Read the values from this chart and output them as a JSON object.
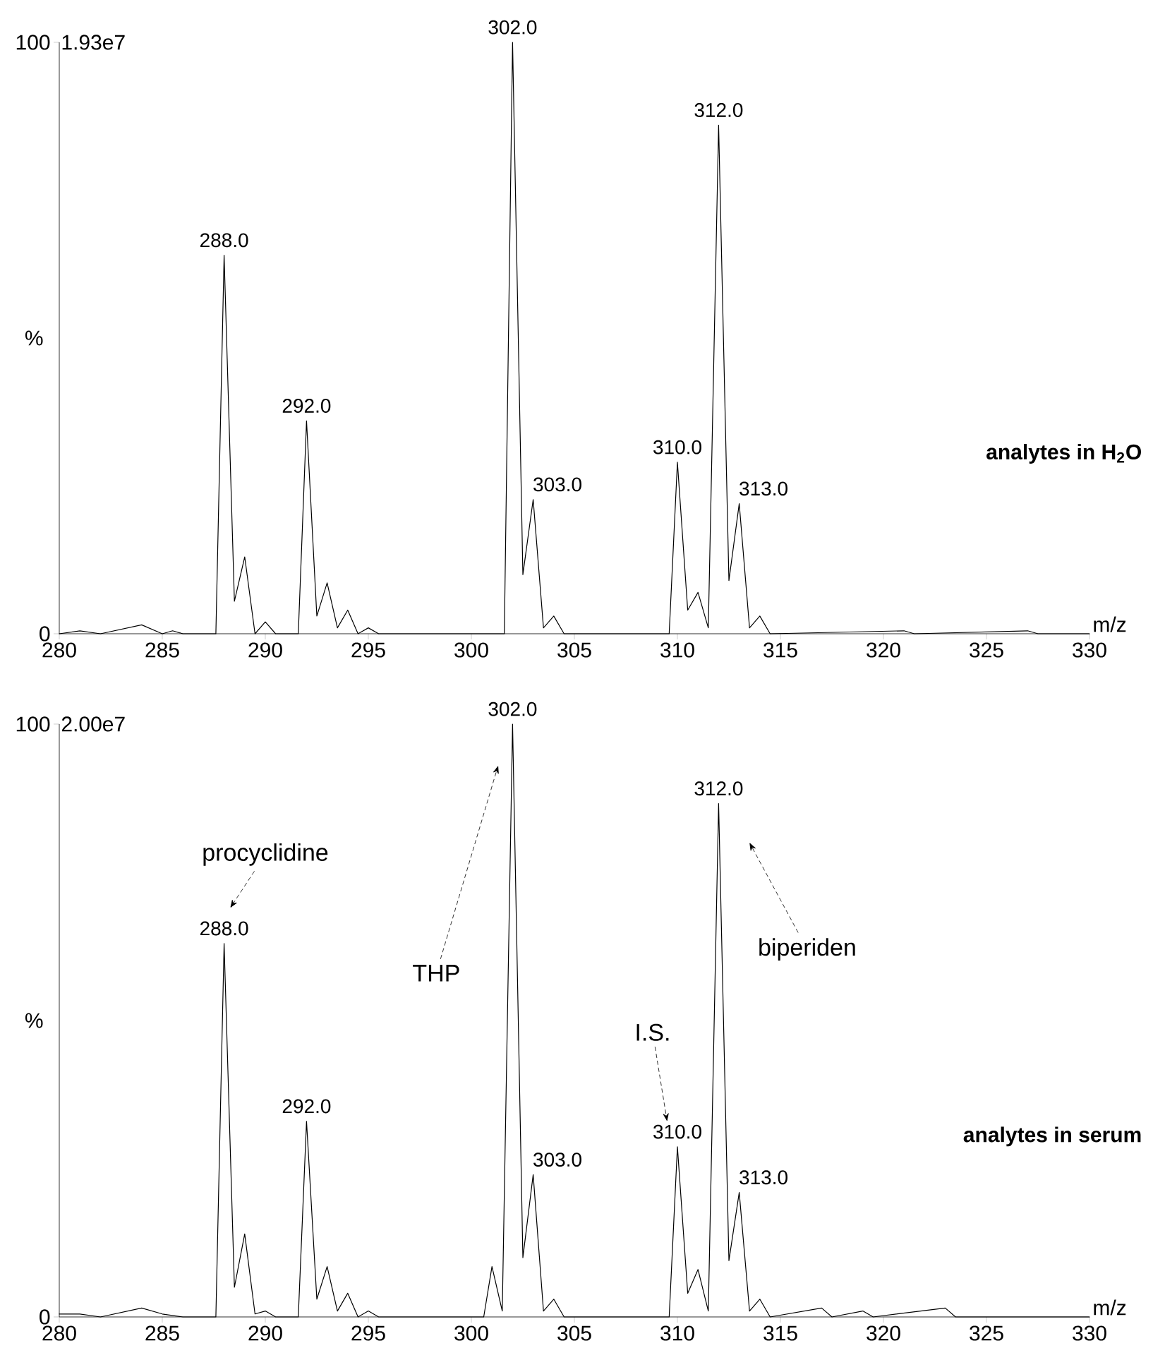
{
  "chart_data": [
    {
      "type": "line",
      "title": "analytes in H$_{2}$O",
      "xlabel": "m/z",
      "ylabel": "%",
      "marker": "none",
      "line_style": "solid",
      "annotations": [
        "1.93e7",
        {
          "text": "288.0",
          "x": 288,
          "y": 64
        },
        {
          "text": "292.0",
          "x": 292,
          "y": 36
        },
        {
          "text": "302.0",
          "x": 302,
          "y": 100
        },
        {
          "text": "303.0",
          "x": 303,
          "y": 22.7
        },
        {
          "text": "310.0",
          "x": 310,
          "y": 29
        },
        {
          "text": "312.0",
          "x": 312,
          "y": 86
        },
        {
          "text": "313.0",
          "x": 313,
          "y": 22
        }
      ],
      "xlim": [
        280,
        330
      ],
      "ylim": [
        0,
        100
      ],
      "xticks": [
        280,
        285,
        290,
        295,
        300,
        305,
        310,
        315,
        320,
        325,
        330
      ],
      "yticks": [
        0,
        100
      ],
      "series": [
        {
          "color": "#000000",
          "x": [
            280,
            281,
            282,
            284,
            285,
            285.5,
            286,
            287.6,
            288,
            288.5,
            289,
            289.5,
            290,
            290.5,
            291.6,
            292,
            292.5,
            293,
            293.5,
            294,
            294.5,
            295,
            295.5,
            301.6,
            302,
            302.5,
            303,
            303.5,
            304,
            304.5,
            309.6,
            310,
            310.5,
            311,
            311.5,
            312,
            312.5,
            313,
            313.5,
            314,
            314.5,
            321,
            321.5,
            327,
            327.5,
            330
          ],
          "values": [
            0,
            0.5,
            0,
            1.5,
            0,
            0.5,
            0,
            0,
            64,
            5.5,
            13,
            0,
            2,
            0,
            0,
            36,
            3,
            8.6,
            1,
            4,
            0,
            1,
            0,
            0,
            100,
            10,
            22.7,
            1,
            3,
            0,
            0,
            29,
            4,
            7,
            1,
            86,
            9,
            22,
            1,
            3,
            0,
            0.5,
            0,
            0.5,
            0,
            0
          ]
        }
      ]
    },
    {
      "type": "line",
      "title": "analytes in serum",
      "xlabel": "m/z",
      "ylabel": "%",
      "marker": "none",
      "line_style": "solid",
      "annotations": [
        "2.00e7",
        "procyclidine",
        "THP",
        "I.S.",
        "biperiden",
        {
          "text": "288.0",
          "x": 288,
          "y": 63
        },
        {
          "text": "292.0",
          "x": 292,
          "y": 33
        },
        {
          "text": "302.0",
          "x": 302,
          "y": 100
        },
        {
          "text": "303.0",
          "x": 303,
          "y": 24
        },
        {
          "text": "310.0",
          "x": 310,
          "y": 28.7
        },
        {
          "text": "312.0",
          "x": 312,
          "y": 86.6
        },
        {
          "text": "313.0",
          "x": 313,
          "y": 21
        }
      ],
      "xlim": [
        280,
        330
      ],
      "ylim": [
        0,
        100
      ],
      "xticks": [
        280,
        285,
        290,
        295,
        300,
        305,
        310,
        315,
        320,
        325,
        330
      ],
      "yticks": [
        0,
        100
      ],
      "series": [
        {
          "color": "#000000",
          "x": [
            280,
            281,
            282,
            284,
            285,
            286,
            287.6,
            288,
            288.5,
            289,
            289.5,
            290,
            290.5,
            291.6,
            292,
            292.5,
            293,
            293.5,
            294,
            294.5,
            295,
            295.5,
            300.6,
            301,
            301.5,
            302,
            302.5,
            303,
            303.5,
            304,
            304.5,
            309.6,
            310,
            310.5,
            311,
            311.5,
            312,
            312.5,
            313,
            313.5,
            314,
            314.5,
            317,
            317.5,
            319,
            319.5,
            323,
            323.5,
            330
          ],
          "values": [
            0.5,
            0.5,
            0,
            1.5,
            0.5,
            0,
            0,
            63,
            5,
            14,
            0.5,
            1,
            0,
            0,
            33,
            3,
            8.5,
            1,
            4,
            0,
            1,
            0,
            0,
            8.5,
            1,
            100,
            10,
            24,
            1,
            3,
            0,
            0,
            28.7,
            4,
            8,
            1,
            86.6,
            9.5,
            21,
            1,
            3,
            0,
            1.5,
            0,
            1,
            0,
            1.5,
            0,
            0
          ]
        }
      ]
    }
  ]
}
